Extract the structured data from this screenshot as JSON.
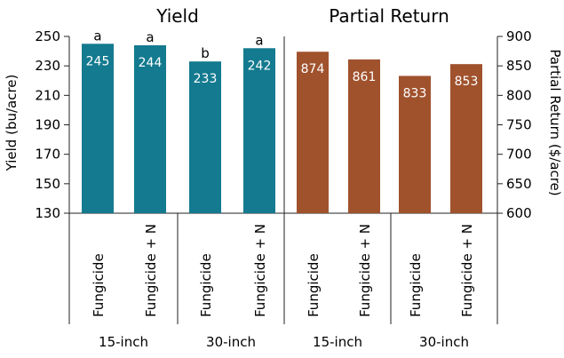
{
  "chart_data": {
    "type": "bar",
    "colors": {
      "yield": "#137A8F",
      "return": "#A0522D"
    },
    "panels": [
      {
        "title": "Yield",
        "axis": "left",
        "ylabel": "Yield (bu/acre)",
        "ylim": [
          130,
          250
        ],
        "yticks": [
          "130",
          "150",
          "170",
          "190",
          "210",
          "230",
          "250"
        ],
        "categories": [
          "Fungicide",
          "Fungicide + N",
          "Fungicide",
          "Fungicide + N"
        ],
        "groups": [
          "15-inch",
          "30-inch"
        ],
        "values": [
          245,
          244,
          233,
          242
        ],
        "value_labels": [
          "245",
          "244",
          "233",
          "242"
        ],
        "significance": [
          "a",
          "a",
          "b",
          "a"
        ],
        "color": "#137A8F"
      },
      {
        "title": "Partial Return",
        "axis": "right",
        "ylabel": "Partial Return ($/acre)",
        "ylim": [
          600,
          900
        ],
        "yticks": [
          "600",
          "650",
          "700",
          "750",
          "800",
          "850",
          "900"
        ],
        "categories": [
          "Fungicide",
          "Fungicide + N",
          "Fungicide",
          "Fungicide + N"
        ],
        "groups": [
          "15-inch",
          "30-inch"
        ],
        "values": [
          874,
          861,
          833,
          853
        ],
        "value_labels": [
          "874",
          "861",
          "833",
          "853"
        ],
        "color": "#A0522D"
      }
    ]
  }
}
